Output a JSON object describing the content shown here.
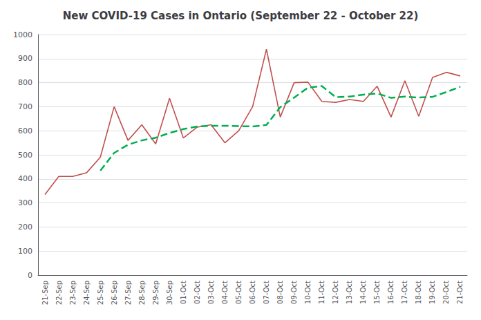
{
  "chart_data": {
    "type": "line",
    "title": "New COVID-19 Cases in Ontario (September 22 - October 22)",
    "categories": [
      "21-Sep",
      "22-Sep",
      "23-Sep",
      "24-Sep",
      "25-Sep",
      "26-Sep",
      "27-Sep",
      "28-Sep",
      "29-Sep",
      "30-Sep",
      "01-Oct",
      "02-Oct",
      "03-Oct",
      "04-Oct",
      "05-Oct",
      "06-Oct",
      "07-Oct",
      "08-Oct",
      "09-Oct",
      "10-Oct",
      "11-Oct",
      "12-Oct",
      "13-Oct",
      "14-Oct",
      "15-Oct",
      "16-Oct",
      "17-Oct",
      "18-Oct",
      "19-Oct",
      "20-Oct",
      "21-Oct"
    ],
    "series": [
      {
        "color": "#c0504d",
        "line_style": "solid",
        "values": [
          335,
          410,
          410,
          425,
          490,
          700,
          560,
          625,
          545,
          735,
          570,
          615,
          625,
          550,
          600,
          700,
          939,
          657,
          800,
          802,
          722,
          718,
          730,
          722,
          785,
          657,
          808,
          660,
          822,
          843,
          828
        ]
      },
      {
        "color": "#00b050",
        "line_style": "dashed",
        "values": [
          null,
          null,
          null,
          null,
          434,
          508,
          542,
          560,
          571,
          591,
          607,
          618,
          621,
          621,
          619,
          618,
          624,
          698,
          738,
          779,
          786,
          740,
          742,
          750,
          755,
          737,
          742,
          738,
          741,
          761,
          783
        ]
      }
    ],
    "ylim": [
      0,
      1000
    ],
    "yticks": [
      0,
      100,
      200,
      300,
      400,
      500,
      600,
      700,
      800,
      900,
      1000
    ],
    "grid": true
  }
}
